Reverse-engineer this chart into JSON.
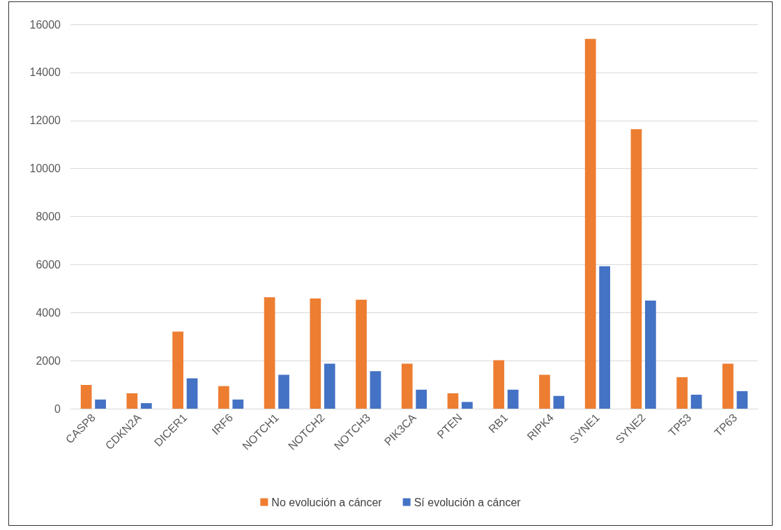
{
  "chart_data": {
    "type": "bar",
    "categories": [
      "CASP8",
      "CDKN2A",
      "DICER1",
      "IRF6",
      "NOTCH1",
      "NOTCH2",
      "NOTCH3",
      "PIK3CA",
      "PTEN",
      "RB1",
      "RIPK4",
      "SYNE1",
      "SYNE2",
      "TP53",
      "TP63"
    ],
    "series": [
      {
        "name": "No evolución a cáncer",
        "color": "#ed7d31",
        "values": [
          990,
          640,
          3210,
          940,
          4640,
          4590,
          4540,
          1870,
          640,
          2020,
          1410,
          15400,
          11640,
          1310,
          1870
        ]
      },
      {
        "name": "Sí evolución a cáncer",
        "color": "#4472c4",
        "values": [
          380,
          230,
          1260,
          380,
          1410,
          1870,
          1560,
          790,
          280,
          790,
          530,
          5930,
          4500,
          580,
          730
        ]
      }
    ],
    "ylim": [
      0,
      16000
    ],
    "yticks": [
      0,
      2000,
      4000,
      6000,
      8000,
      10000,
      12000,
      14000,
      16000
    ],
    "grid": "y",
    "legend": "bottom"
  }
}
